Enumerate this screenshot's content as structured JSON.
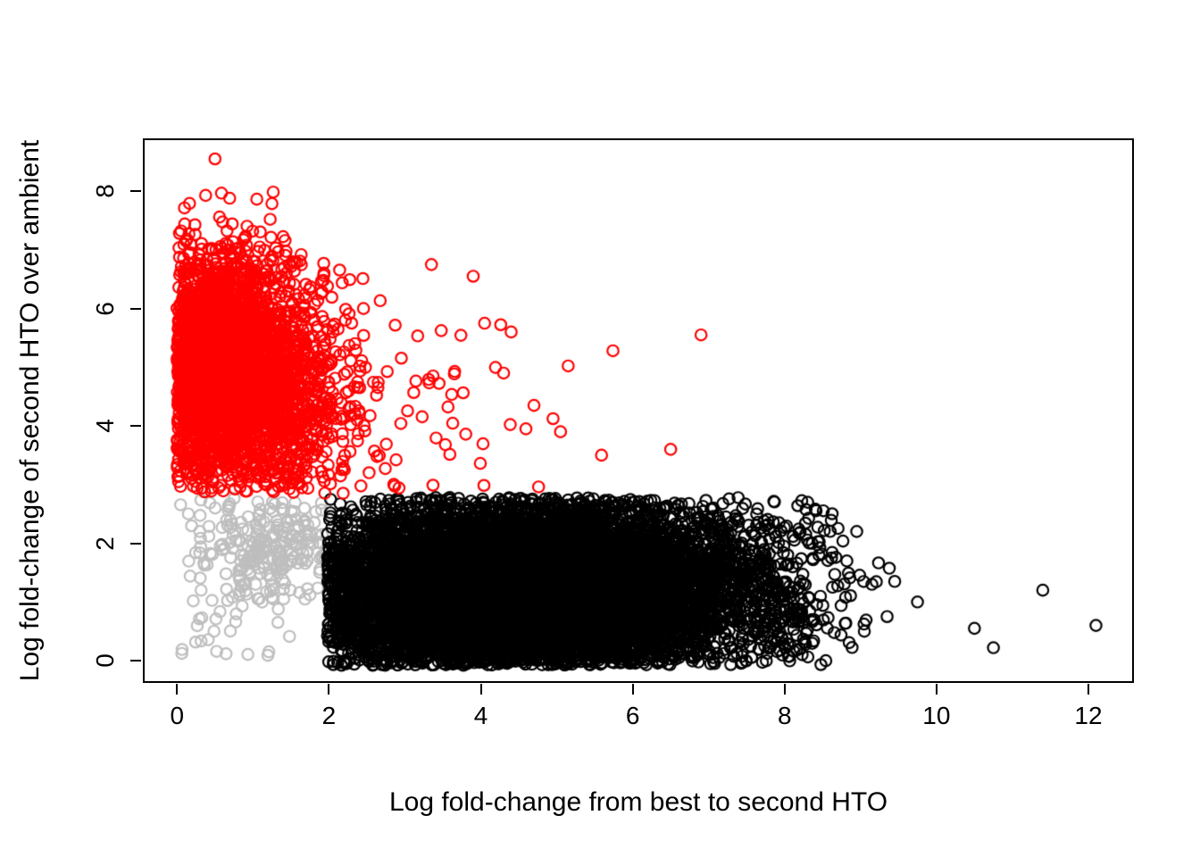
{
  "chart_data": {
    "type": "scatter",
    "title": "",
    "xlabel": "Log fold-change from best to second HTO",
    "ylabel": "Log fold-change of second HTO over ambient",
    "xlim": [
      -0.45,
      12.6
    ],
    "ylim": [
      -0.38,
      8.9
    ],
    "xticks": [
      0,
      2,
      4,
      6,
      8,
      10,
      12
    ],
    "yticks": [
      0,
      2,
      4,
      6,
      8
    ],
    "grid": false,
    "legend": "none",
    "background": "#FFFFFF",
    "axis_color": "#000000",
    "marker": {
      "shape": "open-circle",
      "radius": 6.2,
      "stroke_width": 2.2
    },
    "seed": 7,
    "series": [
      {
        "name": "grey-cluster-scattered",
        "color": "#BEBEBE",
        "count": 55,
        "x": {
          "dist": "uniform",
          "min": 0.05,
          "max": 1.45
        },
        "y": {
          "dist": "uniform",
          "min": 0.08,
          "max": 1.85
        },
        "outliers": []
      },
      {
        "name": "grey-cluster-main",
        "color": "#BEBEBE",
        "count": 210,
        "x": {
          "dist": "normal",
          "mean": 1.4,
          "sd": 0.52,
          "clip": [
            0.02,
            1.96
          ]
        },
        "y": {
          "dist": "normal",
          "mean": 2.05,
          "sd": 0.52,
          "clip": [
            0.2,
            2.78
          ]
        },
        "outliers": [
          [
            0.15,
            2.5
          ],
          [
            0.3,
            2.2
          ]
        ]
      },
      {
        "name": "black-cluster-main",
        "color": "#000000",
        "count": 9000,
        "x": {
          "dist": "normal",
          "mean": 4.55,
          "sd": 1.6,
          "clip": [
            1.98,
            8.9
          ]
        },
        "y": {
          "dist": "normal",
          "mean": 1.18,
          "sd": 0.85,
          "clip": [
            -0.08,
            2.78
          ]
        },
        "outliers": [
          [
            12.1,
            0.6
          ],
          [
            11.4,
            1.2
          ],
          [
            10.75,
            0.22
          ],
          [
            10.5,
            0.55
          ],
          [
            9.75,
            1.0
          ],
          [
            9.45,
            1.35
          ],
          [
            9.35,
            0.75
          ],
          [
            9.15,
            1.3
          ],
          [
            8.95,
            2.2
          ],
          [
            9.05,
            0.5
          ]
        ]
      },
      {
        "name": "black-cluster-tail",
        "color": "#000000",
        "count": 70,
        "x": {
          "dist": "exp",
          "offset": 7.6,
          "scale": 0.6,
          "clip": [
            7.6,
            9.4
          ]
        },
        "y": {
          "dist": "normal",
          "mean": 1.1,
          "sd": 0.65,
          "clip": [
            0.05,
            2.3
          ]
        },
        "outliers": []
      },
      {
        "name": "red-cluster-main",
        "color": "#FF0000",
        "count": 3200,
        "x": {
          "dist": "normal",
          "mean": 0.55,
          "sd": 0.62,
          "clip": [
            0,
            3.4
          ]
        },
        "y": {
          "dist": "normal",
          "mean": 5.05,
          "sd": 0.95,
          "slope": -0.15,
          "clip": [
            2.85,
            8.6
          ]
        },
        "outliers": [
          [
            0.5,
            8.55
          ],
          [
            6.9,
            5.55
          ],
          [
            6.5,
            3.6
          ],
          [
            4.4,
            5.6
          ],
          [
            3.9,
            6.55
          ],
          [
            3.35,
            6.75
          ],
          [
            4.05,
            5.75
          ],
          [
            4.3,
            4.9
          ],
          [
            4.7,
            4.35
          ],
          [
            5.05,
            3.9
          ]
        ]
      },
      {
        "name": "red-cluster-tail",
        "color": "#FF0000",
        "count": 220,
        "x": {
          "dist": "exp",
          "offset": 1.3,
          "scale": 0.95,
          "clip": [
            1.3,
            6.3
          ]
        },
        "y": {
          "dist": "normal",
          "mean": 4.35,
          "sd": 0.95,
          "slope": -0.12,
          "clip": [
            2.85,
            6.9
          ]
        },
        "outliers": []
      }
    ]
  }
}
